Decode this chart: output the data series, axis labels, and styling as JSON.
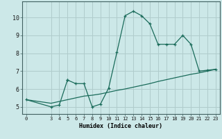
{
  "title": "",
  "xlabel": "Humidex (Indice chaleur)",
  "background_color": "#cce8e8",
  "grid_color": "#b0cccc",
  "line_color": "#1a6b5a",
  "x_ticks": [
    0,
    3,
    4,
    5,
    6,
    7,
    8,
    9,
    10,
    11,
    12,
    13,
    14,
    15,
    16,
    17,
    18,
    19,
    20,
    21,
    22,
    23
  ],
  "ylim": [
    4.6,
    10.9
  ],
  "xlim": [
    -0.5,
    23.5
  ],
  "curve1_x": [
    0,
    3,
    4,
    5,
    5,
    6,
    7,
    8,
    9,
    10,
    11,
    12,
    13,
    14,
    15,
    16,
    17,
    18,
    19,
    20,
    21,
    22,
    23
  ],
  "curve1_y": [
    5.4,
    5.0,
    5.1,
    6.5,
    6.5,
    6.3,
    6.3,
    5.0,
    5.15,
    6.05,
    8.05,
    10.1,
    10.35,
    10.1,
    9.65,
    8.5,
    8.5,
    8.5,
    9.0,
    8.5,
    7.0,
    7.05,
    7.1
  ],
  "curve2_x": [
    0,
    3,
    4,
    5,
    6,
    7,
    8,
    9,
    10,
    11,
    12,
    13,
    14,
    15,
    16,
    17,
    18,
    19,
    20,
    21,
    22,
    23
  ],
  "curve2_y": [
    5.4,
    5.2,
    5.3,
    5.4,
    5.5,
    5.6,
    5.65,
    5.72,
    5.82,
    5.92,
    6.0,
    6.1,
    6.2,
    6.3,
    6.42,
    6.52,
    6.62,
    6.72,
    6.82,
    6.9,
    7.0,
    7.1
  ],
  "yticks": [
    5,
    6,
    7,
    8,
    9,
    10
  ],
  "ytick_labels": [
    "5",
    "6",
    "7",
    "8",
    "9",
    "10"
  ]
}
